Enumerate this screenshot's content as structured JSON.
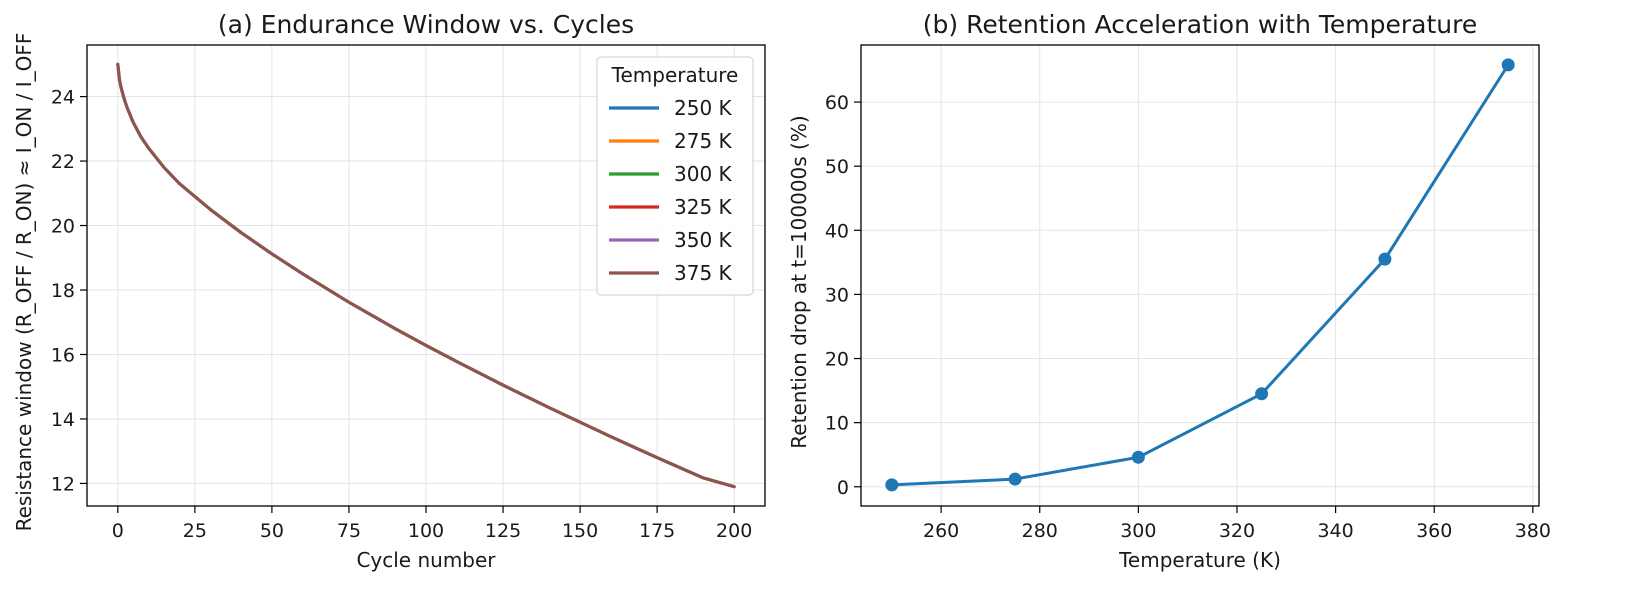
{
  "chart_data": [
    {
      "type": "line",
      "title": "(a) Endurance Window vs. Cycles",
      "xlabel": "Cycle number",
      "ylabel": "Resistance window  (R_OFF / R_ON)  ≈  I_ON / I_OFF",
      "xlim": [
        -10,
        210
      ],
      "ylim": [
        11.3,
        25.6
      ],
      "xticks": [
        0,
        25,
        50,
        75,
        100,
        125,
        150,
        175,
        200
      ],
      "yticks": [
        12,
        14,
        16,
        18,
        20,
        22,
        24
      ],
      "grid": true,
      "legend": {
        "title": "Temperature",
        "placement": "top-right"
      },
      "x": [
        0,
        0.5,
        1,
        2,
        3,
        5,
        7.5,
        10,
        15,
        20,
        25,
        30,
        40,
        50,
        60,
        75,
        90,
        100,
        110,
        125,
        140,
        150,
        160,
        175,
        190,
        200
      ],
      "series": [
        {
          "name": "250 K",
          "color": "#1f77b4",
          "values": [
            25.0,
            24.55,
            24.3,
            23.95,
            23.66,
            23.2,
            22.75,
            22.4,
            21.8,
            21.3,
            20.9,
            20.5,
            19.78,
            19.12,
            18.5,
            17.62,
            16.8,
            16.28,
            15.78,
            15.05,
            14.35,
            13.9,
            13.45,
            12.8,
            12.17,
            11.9
          ]
        },
        {
          "name": "275 K",
          "color": "#ff7f0e",
          "values": [
            25.0,
            24.55,
            24.3,
            23.95,
            23.66,
            23.2,
            22.75,
            22.4,
            21.8,
            21.3,
            20.9,
            20.5,
            19.78,
            19.12,
            18.5,
            17.62,
            16.8,
            16.28,
            15.78,
            15.05,
            14.35,
            13.9,
            13.45,
            12.8,
            12.17,
            11.9
          ]
        },
        {
          "name": "300 K",
          "color": "#2ca02c",
          "values": [
            25.0,
            24.55,
            24.3,
            23.95,
            23.66,
            23.2,
            22.75,
            22.4,
            21.8,
            21.3,
            20.9,
            20.5,
            19.78,
            19.12,
            18.5,
            17.62,
            16.8,
            16.28,
            15.78,
            15.05,
            14.35,
            13.9,
            13.45,
            12.8,
            12.17,
            11.9
          ]
        },
        {
          "name": "325 K",
          "color": "#d62728",
          "values": [
            25.0,
            24.55,
            24.3,
            23.95,
            23.66,
            23.2,
            22.75,
            22.4,
            21.8,
            21.3,
            20.9,
            20.5,
            19.78,
            19.12,
            18.5,
            17.62,
            16.8,
            16.28,
            15.78,
            15.05,
            14.35,
            13.9,
            13.45,
            12.8,
            12.17,
            11.9
          ]
        },
        {
          "name": "350 K",
          "color": "#9467bd",
          "values": [
            25.0,
            24.55,
            24.3,
            23.95,
            23.66,
            23.2,
            22.75,
            22.4,
            21.8,
            21.3,
            20.9,
            20.5,
            19.78,
            19.12,
            18.5,
            17.62,
            16.8,
            16.28,
            15.78,
            15.05,
            14.35,
            13.9,
            13.45,
            12.8,
            12.17,
            11.9
          ]
        },
        {
          "name": "375 K",
          "color": "#8c564b",
          "values": [
            25.0,
            24.55,
            24.3,
            23.95,
            23.66,
            23.2,
            22.75,
            22.4,
            21.8,
            21.3,
            20.9,
            20.5,
            19.78,
            19.12,
            18.5,
            17.62,
            16.8,
            16.28,
            15.78,
            15.05,
            14.35,
            13.9,
            13.45,
            12.8,
            12.17,
            11.9
          ]
        }
      ]
    },
    {
      "type": "line",
      "title": "(b) Retention Acceleration with Temperature",
      "xlabel": "Temperature (K)",
      "ylabel": "Retention drop at t=100000s  (%)",
      "xlim": [
        243.75,
        381.25
      ],
      "ylim": [
        -3.0,
        68.9
      ],
      "xticks": [
        260,
        280,
        300,
        320,
        340,
        360,
        380
      ],
      "yticks": [
        0,
        10,
        20,
        30,
        40,
        50,
        60
      ],
      "grid": true,
      "markers": true,
      "x": [
        250,
        275,
        300,
        325,
        350,
        375
      ],
      "series": [
        {
          "color": "#1f77b4",
          "values": [
            0.3,
            1.2,
            4.6,
            14.5,
            35.5,
            65.8
          ]
        }
      ]
    }
  ]
}
